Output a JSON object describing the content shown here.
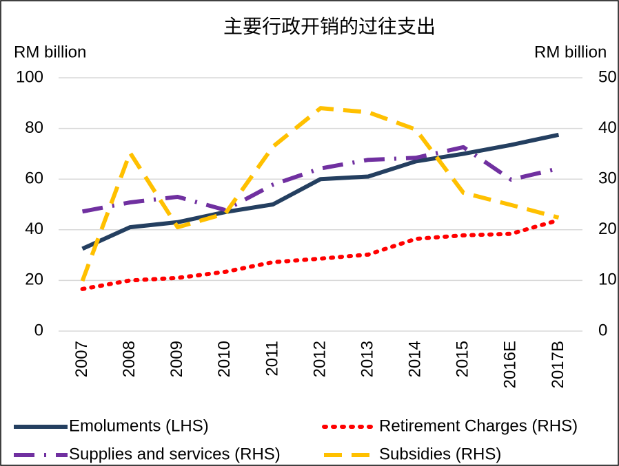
{
  "chart_data": {
    "type": "line",
    "title": "主要行政开销的过往支出",
    "y_label": "RM billion",
    "y2_label": "RM billion",
    "categories": [
      "2007",
      "2008",
      "2009",
      "2010",
      "2011",
      "2012",
      "2013",
      "2014",
      "2015",
      "2016E",
      "2017B"
    ],
    "ylim": [
      0,
      100
    ],
    "yticks": [
      0,
      20,
      40,
      60,
      80,
      100
    ],
    "y2lim": [
      0,
      50
    ],
    "y2ticks": [
      0,
      10,
      20,
      30,
      40,
      50
    ],
    "grid": true,
    "legend": "bottom",
    "series": [
      {
        "name": "Emoluments (LHS)",
        "color": "#243f60",
        "dash": "solid",
        "values": [
          32.5,
          41,
          43,
          47,
          50,
          60,
          61,
          67,
          70,
          73.5,
          77.5
        ]
      },
      {
        "name": "Retirement Charges (RHS)",
        "color": "#ff0000",
        "dash": "dot",
        "axis": "y2",
        "values": [
          8.3,
          10.0,
          10.5,
          11.7,
          13.6,
          14.3,
          15.1,
          18.2,
          18.9,
          19.2,
          21.9
        ]
      },
      {
        "name": "Supplies and services (RHS)",
        "color": "#7030a0",
        "dash": "longdashdot",
        "axis": "y2",
        "values": [
          23.6,
          25.4,
          26.5,
          23.9,
          28.9,
          32.1,
          33.8,
          34.2,
          36.3,
          29.9,
          32.1
        ]
      },
      {
        "name": "Subsidies (RHS)",
        "color": "#ffc000",
        "dash": "dash",
        "axis": "y2",
        "values": [
          9.9,
          35.2,
          20.5,
          23.2,
          36.4,
          44,
          43.2,
          39.8,
          27.3,
          24.9,
          22.4
        ]
      }
    ]
  }
}
